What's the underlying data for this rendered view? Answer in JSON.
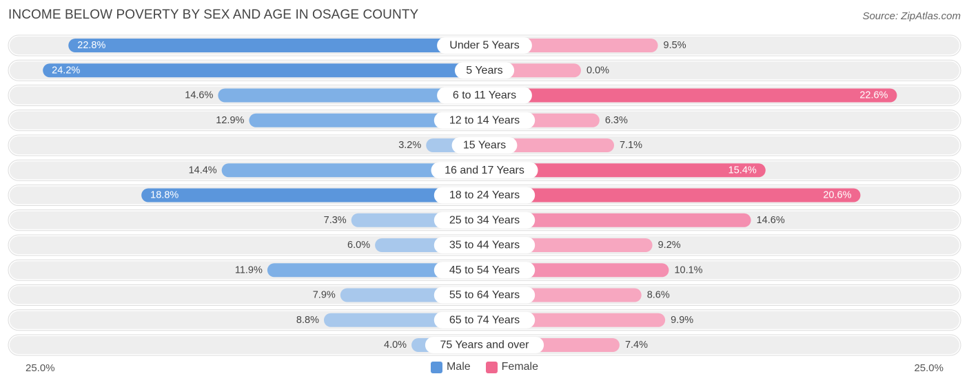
{
  "title": "INCOME BELOW POVERTY BY SEX AND AGE IN OSAGE COUNTY",
  "source": "Source: ZipAtlas.com",
  "axis": {
    "left_label": "25.0%",
    "right_label": "25.0%"
  },
  "legend": {
    "male_label": "Male",
    "female_label": "Female"
  },
  "colors": {
    "male_strong": "#5b96dc",
    "male_light": "#a8c8ec",
    "female_strong": "#f0688f",
    "female_light": "#f7a7c0",
    "row_bg": "#eeeeee"
  },
  "chart_data": {
    "type": "bar",
    "orientation": "diverging-horizontal",
    "title": "INCOME BELOW POVERTY BY SEX AND AGE IN OSAGE COUNTY",
    "xlim": [
      -25,
      25
    ],
    "categories": [
      "Under 5 Years",
      "5 Years",
      "6 to 11 Years",
      "12 to 14 Years",
      "15 Years",
      "16 and 17 Years",
      "18 to 24 Years",
      "25 to 34 Years",
      "35 to 44 Years",
      "45 to 54 Years",
      "55 to 64 Years",
      "65 to 74 Years",
      "75 Years and over"
    ],
    "series": [
      {
        "name": "Male",
        "values": [
          22.8,
          24.2,
          14.6,
          12.9,
          3.2,
          14.4,
          18.8,
          7.3,
          6.0,
          11.9,
          7.9,
          8.8,
          4.0
        ],
        "labels": [
          "22.8%",
          "24.2%",
          "14.6%",
          "12.9%",
          "3.2%",
          "14.4%",
          "18.8%",
          "7.3%",
          "6.0%",
          "11.9%",
          "7.9%",
          "8.8%",
          "4.0%"
        ]
      },
      {
        "name": "Female",
        "values": [
          9.5,
          0.0,
          22.6,
          6.3,
          7.1,
          15.4,
          20.6,
          14.6,
          9.2,
          10.1,
          8.6,
          9.9,
          7.4
        ],
        "labels": [
          "9.5%",
          "0.0%",
          "22.6%",
          "6.3%",
          "7.1%",
          "15.4%",
          "20.6%",
          "14.6%",
          "9.2%",
          "10.1%",
          "8.6%",
          "9.9%",
          "7.4%"
        ]
      }
    ]
  }
}
